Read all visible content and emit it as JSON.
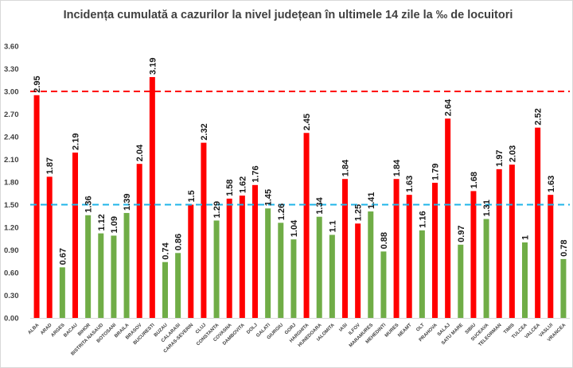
{
  "chart_data": {
    "type": "bar",
    "title": "Incidența cumulată a cazurilor la nivel județean în ultimele 14 zile la ‰ de locuitori",
    "xlabel": "",
    "ylabel": "",
    "ylim": [
      0,
      3.6
    ],
    "yticks": [
      "0.00",
      "0.30",
      "0.60",
      "0.90",
      "1.20",
      "1.50",
      "1.80",
      "2.10",
      "2.40",
      "2.70",
      "3.00",
      "3.30",
      "3.60"
    ],
    "grid": false,
    "categories": [
      "ALBA",
      "ARAD",
      "ARGES",
      "BACAU",
      "BIHOR",
      "BISTRITA NASAUD",
      "BOTOSANI",
      "BRAILA",
      "BRASOV",
      "BUCURESTI",
      "BUZAU",
      "CALARASI",
      "CARAS-SEVERIN",
      "CLUJ",
      "CONSTANTA",
      "COVASNA",
      "DAMBOVITA",
      "DOLJ",
      "GALATI",
      "GIURGIU",
      "GORJ",
      "HARGHITA",
      "HUNEDOARA",
      "IALOMITA",
      "IASI",
      "ILFOV",
      "MARAMURES",
      "MEHEDINTI",
      "MURES",
      "NEAMT",
      "OLT",
      "PRAHOVA",
      "SALAJ",
      "SATU MARE",
      "SIBIU",
      "SUCEAVA",
      "TELEORMAN",
      "TIMIS",
      "TULCEA",
      "VALCEA",
      "VASLUI",
      "VRANCEA"
    ],
    "values": [
      2.95,
      1.87,
      0.67,
      2.19,
      1.36,
      1.12,
      1.09,
      1.39,
      2.04,
      3.19,
      0.74,
      0.86,
      1.5,
      2.32,
      1.29,
      1.58,
      1.62,
      1.76,
      1.45,
      1.26,
      1.04,
      2.45,
      1.34,
      1.1,
      1.84,
      1.25,
      1.41,
      0.88,
      1.84,
      1.63,
      1.16,
      1.79,
      2.64,
      0.97,
      1.68,
      1.31,
      1.97,
      2.03,
      1,
      2.52,
      1.63,
      0.78
    ],
    "data_labels": [
      "2.95",
      "1.87",
      "0.67",
      "2.19",
      "1.36",
      "1.12",
      "1.09",
      "1.39",
      "2.04",
      "3.19",
      "0.74",
      "0.86",
      "1.5",
      "2.32",
      "1.29",
      "1.58",
      "1.62",
      "1.76",
      "1.45",
      "1.26",
      "1.04",
      "2.45",
      "1.34",
      "1.1",
      "1.84",
      "1.25",
      "1.41",
      "0.88",
      "1.84",
      "1.63",
      "1.16",
      "1.79",
      "2.64",
      "0.97",
      "1.68",
      "1.31",
      "1.97",
      "2.03",
      "1",
      "2.52",
      "1.63",
      "0.78"
    ],
    "bar_colors": [
      "red",
      "red",
      "green",
      "red",
      "green",
      "green",
      "green",
      "green",
      "red",
      "red",
      "green",
      "green",
      "red",
      "red",
      "green",
      "red",
      "red",
      "red",
      "green",
      "green",
      "green",
      "red",
      "green",
      "green",
      "red",
      "red",
      "green",
      "green",
      "red",
      "red",
      "green",
      "red",
      "red",
      "green",
      "red",
      "green",
      "red",
      "red",
      "green",
      "red",
      "red",
      "green"
    ],
    "reference_lines": [
      {
        "value": 3.0,
        "color": "#ff0000",
        "style": "dashed"
      },
      {
        "value": 1.5,
        "color": "#1fb4e8",
        "style": "dashed"
      }
    ],
    "legend": "none"
  },
  "colors": {
    "red": "#ff0000",
    "green": "#70ad47",
    "text": "#404040"
  }
}
